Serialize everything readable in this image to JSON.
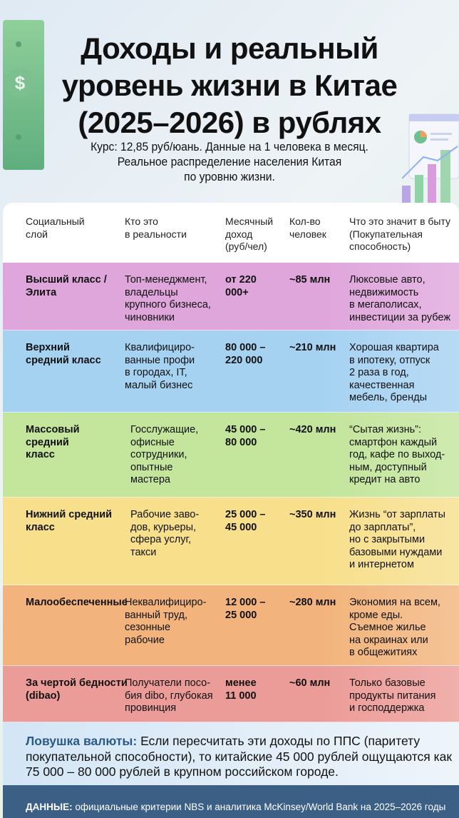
{
  "title": [
    "Доходы и реальный",
    "уровень жизни в Китае",
    "(2025–2026) в рублях"
  ],
  "subtitle": [
    "Курс: 12,85 руб/юань. Данные на 1 человека в месяц.",
    "Реальное распределение населения Китая",
    "по уровню жизни."
  ],
  "headers": [
    "Социальный\nслой",
    "Кто это\nв реальности",
    "Месячный\nдоход\n(руб/чел)",
    "Кол-во\nчеловек",
    "Что это значит в быту\n(Покупательная\nспособность)"
  ],
  "rows": [
    {
      "layer": "Высший класс /\nЭлита",
      "who": "Топ-менеджмент,\nвладельцы\nкрупного бизнеса,\nчиновники",
      "income": "от 220\n000+",
      "count": "~85 млн",
      "meaning": "Люксовые авто,\nнедвижимость\nв мегаполисах,\nинвестиции за рубеж",
      "color": "#dfa6dc"
    },
    {
      "layer": "Верхний\nсредний класс",
      "who": "Квалифициро-\nванные профи\nв городах, IT,\nмалый бизнес",
      "income": "80 000 –\n220 000",
      "count": "~210 млн",
      "meaning": "Хорошая квартира\nв ипотеку, отпуск\n2 раза в год,\nкачественная\nмебель, бренды",
      "color": "#a6d2f2"
    },
    {
      "layer": "Массовый\nсредний\nкласс",
      "who": "Госслужащие,\nофисные\nсотрудники,\nопытные\nмастера",
      "income": "45 000 –\n80 000",
      "count": "~420 млн",
      "meaning": "“Сытая жизнь”:\nсмартфон каждый\nгод, кафе по выход-\nным, доступный\nкредит на авто",
      "color": "#c3e59c"
    },
    {
      "layer": "Нижний средний\nкласс",
      "who": "Рабочие заво-\nдов, курьеры,\nсфера услуг,\nтакси",
      "income": "25 000 –\n45 000",
      "count": "~350 млн",
      "meaning": "Жизнь “от зарплаты\nдо зарплаты”,\nно с закрытыми\nбазовыми нуждами\nи интернетом",
      "color": "#f7df8c"
    },
    {
      "layer": "Малообеспеченные",
      "who": "Неквалифициро-\nванный труд,\nсезонные\nрабочие",
      "income": "12 000 –\n25 000",
      "count": "~280 млн",
      "meaning": "Экономия на всем,\nкроме еды.\nСъемное жилье\nна окраинах или\nв общежитиях",
      "color": "#f2b47c"
    },
    {
      "layer": "За чертой бедности\n(dibao)",
      "who": "Получатели посо-\nбия dibo, глубокая\nпровинция",
      "income": "менее\n11 000",
      "count": "~60 млн",
      "meaning": "Только базовые\nпродукты питания\nи господдержка",
      "color": "#ec9c98"
    }
  ],
  "callout": {
    "label": "Ловушка валюты:",
    "text": " Если пересчитать эти доходы по ППС (паритету покупательной способности), то китайские 45 000 рублей ощущаются как 75 000 – 80 000 рублей в крупном российском городе."
  },
  "footer": {
    "label": "ДАННЫЕ:",
    "text": " официальные критерии NBS и аналитика McKinsey/World Bank на 2025–2026 годы"
  }
}
